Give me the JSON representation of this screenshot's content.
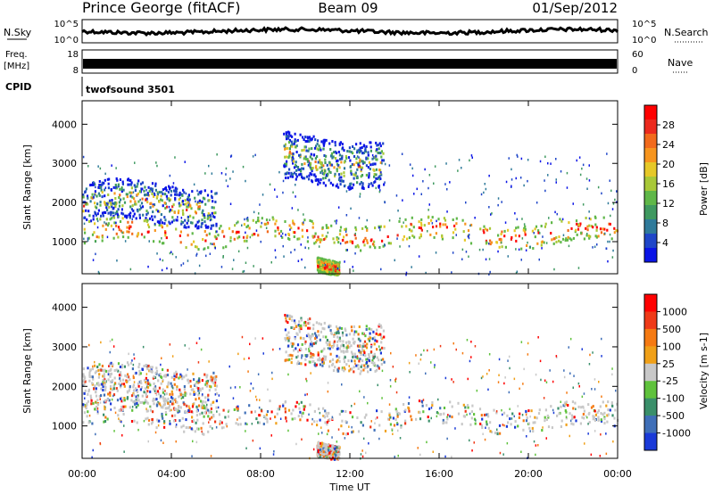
{
  "header": {
    "station": "Prince George (fitACF)",
    "beam": "Beam 09",
    "date": "01/Sep/2012"
  },
  "strips": {
    "nsky_label": "N.Sky",
    "nsearch_label": "N.Search",
    "count_ticks_left": [
      "10^5",
      "10^0"
    ],
    "count_ticks_right": [
      "10^5",
      "10^0"
    ],
    "freq_label_1": "Freq.",
    "freq_label_2": "[MHz]",
    "freq_ticks": [
      "18",
      "8"
    ],
    "nave_label": "Nave",
    "nave_ticks": [
      "60",
      "0"
    ],
    "cpid_label": "CPID",
    "cpid_value": "twofsound 3501"
  },
  "chart_data": [
    {
      "type": "heatmap",
      "quantity": "Power",
      "ylabel": "Slant Range [km]",
      "colorbar_label": "Power [dB]",
      "x_range_hours": [
        0,
        24
      ],
      "ylim": [
        180,
        4600
      ],
      "y_ticks": [
        1000,
        2000,
        3000,
        4000
      ],
      "colorbar_ticks": [
        "28",
        "24",
        "20",
        "16",
        "12",
        "8",
        "4"
      ],
      "colors": [
        "#0a14e6",
        "#1f46c8",
        "#2f7a9a",
        "#3f9960",
        "#5fb748",
        "#a8c838",
        "#e6c828",
        "#f7951e",
        "#f26a1c",
        "#ec2a1e",
        "#ff0000"
      ],
      "echo_bands": [
        {
          "from_h": 0,
          "to_h": 24,
          "center_km": 1250,
          "width_km": 300
        },
        {
          "from_h": 0,
          "to_h": 6,
          "center_km": 2000,
          "width_km": 500
        },
        {
          "from_h": 9,
          "to_h": 13.5,
          "center_km": 3100,
          "width_km": 600
        },
        {
          "from_h": 10.5,
          "to_h": 11.5,
          "center_km": 450,
          "width_km": 180
        }
      ]
    },
    {
      "type": "heatmap",
      "quantity": "Velocity",
      "ylabel": "Slant Range [km]",
      "colorbar_label": "Velocity [m s-1]",
      "x_range_hours": [
        0,
        24
      ],
      "ylim": [
        180,
        4600
      ],
      "y_ticks": [
        1000,
        2000,
        3000,
        4000
      ],
      "colorbar_ticks": [
        "1000",
        "500",
        "100",
        "25",
        "-25",
        "-100",
        "-500",
        "-1000"
      ],
      "colors": [
        "#1a3ad8",
        "#3f6fb8",
        "#3a8f6a",
        "#5fc23c",
        "#c8c8c8",
        "#f0a018",
        "#f57a12",
        "#ef3a18",
        "#ff0000"
      ]
    }
  ],
  "x_axis": {
    "ticks": [
      "00:00",
      "04:00",
      "08:00",
      "12:00",
      "16:00",
      "20:00",
      "00:00"
    ],
    "label": "Time UT"
  }
}
